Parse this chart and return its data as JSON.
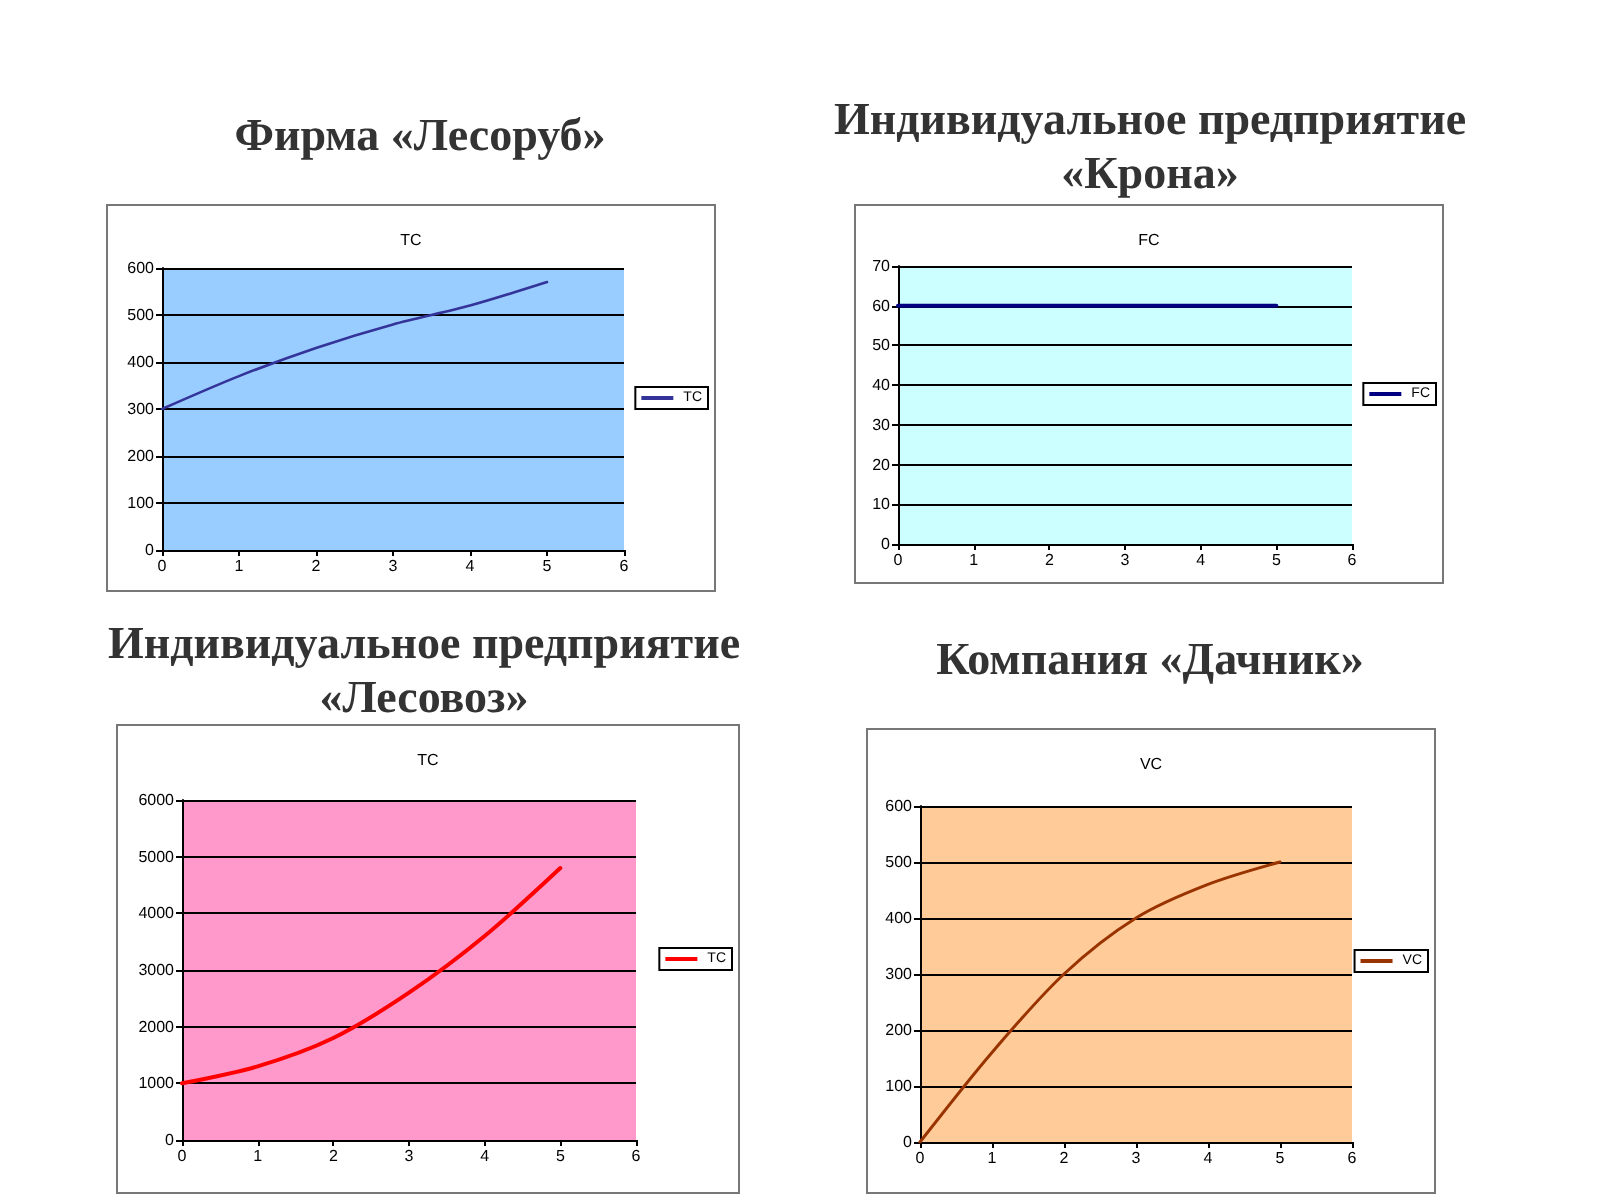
{
  "chart_data": [
    {
      "type": "line",
      "title": "Фирма «Лесоруб»",
      "subtitle": "TC",
      "x": [
        0,
        1,
        2,
        3,
        4,
        5
      ],
      "series": [
        {
          "name": "TC",
          "color": "#333399",
          "values": [
            300,
            370,
            430,
            480,
            520,
            570
          ]
        }
      ],
      "xlim": [
        0,
        6
      ],
      "xticks": [
        0,
        1,
        2,
        3,
        4,
        5,
        6
      ],
      "ylim": [
        0,
        600
      ],
      "yticks": [
        0,
        100,
        200,
        300,
        400,
        500,
        600
      ],
      "grid": "y",
      "legend": "right",
      "marker": "none"
    },
    {
      "type": "line",
      "title": "Индивидуальное предприятие «Крона»",
      "subtitle": "FC",
      "x": [
        0,
        1,
        2,
        3,
        4,
        5
      ],
      "series": [
        {
          "name": "FC",
          "color": "#000080",
          "values": [
            60,
            60,
            60,
            60,
            60,
            60
          ]
        }
      ],
      "xlim": [
        0,
        6
      ],
      "xticks": [
        0,
        1,
        2,
        3,
        4,
        5,
        6
      ],
      "ylim": [
        0,
        70
      ],
      "yticks": [
        0,
        10,
        20,
        30,
        40,
        50,
        60,
        70
      ],
      "grid": "y",
      "legend": "right",
      "marker": "none"
    },
    {
      "type": "line",
      "title": "Индивидуальное предприятие «Лесовоз»",
      "subtitle": "TC",
      "x": [
        0,
        1,
        2,
        3,
        4,
        5
      ],
      "series": [
        {
          "name": "TC",
          "color": "#ff0000",
          "values": [
            1000,
            1300,
            1800,
            2600,
            3600,
            4800
          ]
        }
      ],
      "xlim": [
        0,
        6
      ],
      "xticks": [
        0,
        1,
        2,
        3,
        4,
        5,
        6
      ],
      "ylim": [
        0,
        6000
      ],
      "yticks": [
        0,
        1000,
        2000,
        3000,
        4000,
        5000,
        6000
      ],
      "grid": "y",
      "legend": "right",
      "marker": "none"
    },
    {
      "type": "line",
      "title": "Компания «Дачник»",
      "subtitle": "VC",
      "x": [
        0,
        1,
        2,
        3,
        4,
        5
      ],
      "series": [
        {
          "name": "VC",
          "color": "#993300",
          "values": [
            0,
            160,
            300,
            400,
            460,
            500
          ]
        }
      ],
      "xlim": [
        0,
        6
      ],
      "xticks": [
        0,
        1,
        2,
        3,
        4,
        5,
        6
      ],
      "ylim": [
        0,
        600
      ],
      "yticks": [
        0,
        100,
        200,
        300,
        400,
        500,
        600
      ],
      "grid": "y",
      "legend": "right",
      "marker": "none"
    }
  ]
}
